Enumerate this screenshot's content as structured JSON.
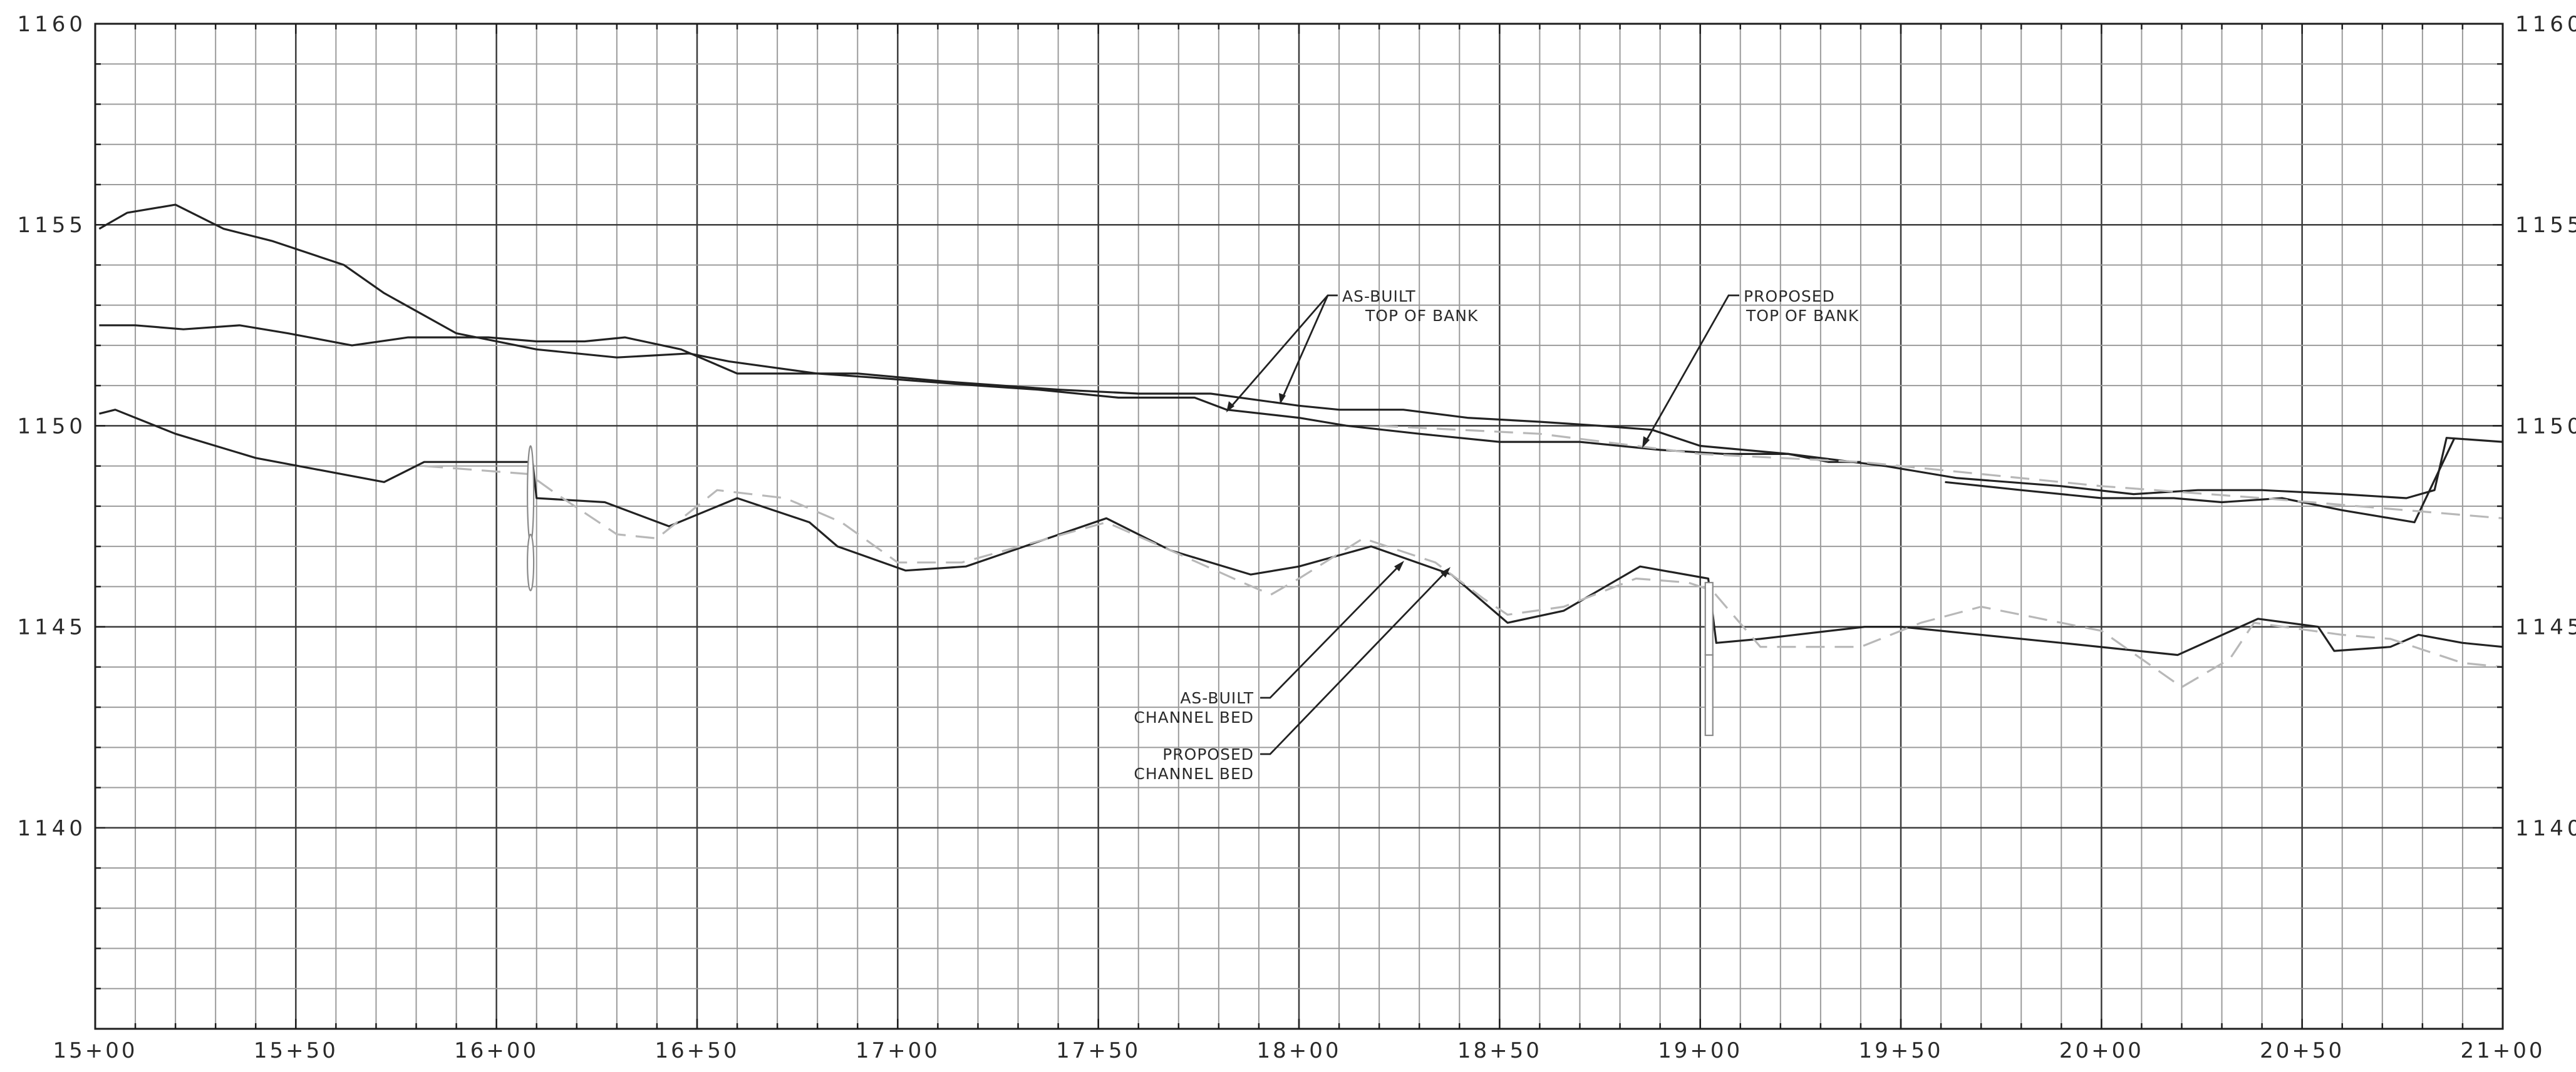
{
  "chart_data": {
    "type": "line",
    "title": "",
    "xlabel": "",
    "ylabel": "",
    "x_unit": "station (ft)",
    "xlim": [
      1500,
      2100
    ],
    "ylim": [
      1135,
      1160
    ],
    "x_grid_step": 10,
    "y_grid_step": 1,
    "grid": true,
    "legend": "none",
    "x_ticks": [
      {
        "value": 1500,
        "label": "15+00"
      },
      {
        "value": 1550,
        "label": "15+50"
      },
      {
        "value": 1600,
        "label": "16+00"
      },
      {
        "value": 1650,
        "label": "16+50"
      },
      {
        "value": 1700,
        "label": "17+00"
      },
      {
        "value": 1750,
        "label": "17+50"
      },
      {
        "value": 1800,
        "label": "18+00"
      },
      {
        "value": 1850,
        "label": "18+50"
      },
      {
        "value": 1900,
        "label": "19+00"
      },
      {
        "value": 1950,
        "label": "19+50"
      },
      {
        "value": 2000,
        "label": "20+00"
      },
      {
        "value": 2050,
        "label": "20+50"
      },
      {
        "value": 2100,
        "label": "21+00"
      }
    ],
    "y_ticks": [
      {
        "value": 1160,
        "label": "1160"
      },
      {
        "value": 1155,
        "label": "1155"
      },
      {
        "value": 1150,
        "label": "1150"
      },
      {
        "value": 1145,
        "label": "1145"
      },
      {
        "value": 1140,
        "label": "1140"
      }
    ],
    "series": [
      {
        "style": "solid",
        "points": [
          [
            1501,
            1154.9
          ],
          [
            1508,
            1155.3
          ],
          [
            1520,
            1155.5
          ],
          [
            1532,
            1154.9
          ],
          [
            1544,
            1154.6
          ],
          [
            1562,
            1154.0
          ],
          [
            1572,
            1153.3
          ],
          [
            1590,
            1152.3
          ],
          [
            1610,
            1151.9
          ],
          [
            1630,
            1151.7
          ],
          [
            1648,
            1151.8
          ],
          [
            1658,
            1151.6
          ],
          [
            1680,
            1151.3
          ],
          [
            1694,
            1151.2
          ],
          [
            1720,
            1151.0
          ],
          [
            1735,
            1150.9
          ],
          [
            1755,
            1150.7
          ],
          [
            1774,
            1150.7
          ],
          [
            1782,
            1150.4
          ],
          [
            1800,
            1150.2
          ],
          [
            1812,
            1150.0
          ],
          [
            1830,
            1149.8
          ],
          [
            1850,
            1149.6
          ],
          [
            1870,
            1149.6
          ],
          [
            1890,
            1149.4
          ],
          [
            1906,
            1149.3
          ],
          [
            1922,
            1149.3
          ],
          [
            1932,
            1149.1
          ],
          [
            1940,
            1149.1
          ]
        ]
      },
      {
        "style": "solid",
        "points": [
          [
            1501,
            1152.5
          ],
          [
            1510,
            1152.5
          ],
          [
            1522,
            1152.4
          ],
          [
            1536,
            1152.5
          ],
          [
            1548,
            1152.3
          ],
          [
            1564,
            1152.0
          ],
          [
            1578,
            1152.2
          ],
          [
            1598,
            1152.2
          ],
          [
            1610,
            1152.1
          ],
          [
            1622,
            1152.1
          ],
          [
            1632,
            1152.2
          ],
          [
            1646,
            1151.9
          ],
          [
            1660,
            1151.3
          ],
          [
            1675,
            1151.3
          ],
          [
            1690,
            1151.3
          ],
          [
            1712,
            1151.1
          ],
          [
            1740,
            1150.9
          ],
          [
            1760,
            1150.8
          ],
          [
            1778,
            1150.8
          ],
          [
            1800,
            1150.5
          ],
          [
            1810,
            1150.4
          ],
          [
            1826,
            1150.4
          ],
          [
            1842,
            1150.2
          ],
          [
            1860,
            1150.1
          ],
          [
            1875,
            1150.0
          ],
          [
            1888,
            1149.9
          ],
          [
            1900,
            1149.5
          ],
          [
            1922,
            1149.3
          ],
          [
            1946,
            1149.0
          ],
          [
            1964,
            1148.7
          ],
          [
            1990,
            1148.5
          ],
          [
            2008,
            1148.3
          ],
          [
            2024,
            1148.4
          ],
          [
            2040,
            1148.4
          ],
          [
            2060,
            1148.3
          ],
          [
            2076,
            1148.2
          ],
          [
            2083,
            1148.4
          ],
          [
            2086,
            1149.7
          ],
          [
            2100,
            1149.6
          ]
        ]
      },
      {
        "style": "solid",
        "points": [
          [
            1501,
            1150.3
          ],
          [
            1505,
            1150.4
          ],
          [
            1520,
            1149.8
          ],
          [
            1540,
            1149.2
          ],
          [
            1572,
            1148.6
          ],
          [
            1582,
            1149.1
          ],
          [
            1609,
            1149.1
          ],
          [
            1610,
            1148.2
          ],
          [
            1627,
            1148.1
          ],
          [
            1643,
            1147.5
          ],
          [
            1660,
            1148.2
          ],
          [
            1678,
            1147.6
          ],
          [
            1685,
            1147.0
          ],
          [
            1702,
            1146.4
          ],
          [
            1717,
            1146.5
          ],
          [
            1752,
            1147.7
          ],
          [
            1768,
            1146.9
          ],
          [
            1788,
            1146.3
          ],
          [
            1800,
            1146.5
          ],
          [
            1818,
            1147.0
          ],
          [
            1838,
            1146.3
          ],
          [
            1852,
            1145.1
          ],
          [
            1866,
            1145.4
          ],
          [
            1885,
            1146.5
          ],
          [
            1902,
            1146.2
          ],
          [
            1904,
            1144.6
          ],
          [
            1915,
            1144.7
          ],
          [
            1941,
            1145.0
          ],
          [
            1950,
            1145.0
          ],
          [
            1990,
            1144.6
          ],
          [
            2019,
            1144.3
          ],
          [
            2039,
            1145.2
          ],
          [
            2054,
            1145.0
          ],
          [
            2058,
            1144.4
          ],
          [
            2072,
            1144.5
          ],
          [
            2079,
            1144.8
          ],
          [
            2090,
            1144.6
          ],
          [
            2100,
            1144.5
          ]
        ]
      },
      {
        "style": "solid",
        "points": [
          [
            1961,
            1148.6
          ],
          [
            1980,
            1148.4
          ],
          [
            2000,
            1148.2
          ],
          [
            2018,
            1148.2
          ],
          [
            2030,
            1148.1
          ],
          [
            2045,
            1148.2
          ],
          [
            2060,
            1147.9
          ],
          [
            2078,
            1147.6
          ],
          [
            2088,
            1149.7
          ]
        ]
      },
      {
        "style": "dashed",
        "points": [
          [
            1582,
            1149.0
          ],
          [
            1608,
            1148.8
          ],
          [
            1615,
            1148.3
          ],
          [
            1630,
            1147.3
          ],
          [
            1640,
            1147.2
          ],
          [
            1655,
            1148.4
          ],
          [
            1672,
            1148.2
          ],
          [
            1686,
            1147.6
          ],
          [
            1700,
            1146.6
          ],
          [
            1716,
            1146.6
          ],
          [
            1752,
            1147.6
          ],
          [
            1768,
            1146.9
          ],
          [
            1786,
            1146.1
          ],
          [
            1793,
            1145.8
          ],
          [
            1800,
            1146.2
          ],
          [
            1816,
            1147.2
          ],
          [
            1834,
            1146.6
          ],
          [
            1846,
            1145.7
          ],
          [
            1852,
            1145.3
          ],
          [
            1866,
            1145.5
          ],
          [
            1884,
            1146.2
          ],
          [
            1897,
            1146.1
          ],
          [
            1903,
            1145.9
          ],
          [
            1915,
            1144.5
          ],
          [
            1940,
            1144.5
          ],
          [
            1955,
            1145.1
          ],
          [
            1970,
            1145.5
          ],
          [
            1990,
            1145.1
          ],
          [
            2000,
            1144.9
          ],
          [
            2020,
            1143.5
          ],
          [
            2032,
            1144.2
          ],
          [
            2038,
            1145.1
          ],
          [
            2060,
            1144.8
          ],
          [
            2072,
            1144.7
          ],
          [
            2090,
            1144.1
          ],
          [
            2100,
            1144.0
          ]
        ]
      },
      {
        "style": "dashed",
        "points": [
          [
            1820,
            1150.0
          ],
          [
            1860,
            1149.8
          ],
          [
            1900,
            1149.3
          ],
          [
            1940,
            1149.1
          ],
          [
            1970,
            1148.8
          ],
          [
            2000,
            1148.5
          ],
          [
            2040,
            1148.2
          ],
          [
            2076,
            1147.9
          ],
          [
            2100,
            1147.7
          ]
        ]
      }
    ],
    "annotations": [
      {
        "lines": [
          "AS-BUILT",
          "TOP OF BANK"
        ]
      },
      {
        "lines": [
          "PROPOSED",
          "TOP OF BANK"
        ]
      },
      {
        "lines": [
          "AS-BUILT",
          "CHANNEL BED"
        ]
      },
      {
        "lines": [
          "PROPOSED",
          "CHANNEL BED"
        ]
      }
    ]
  }
}
